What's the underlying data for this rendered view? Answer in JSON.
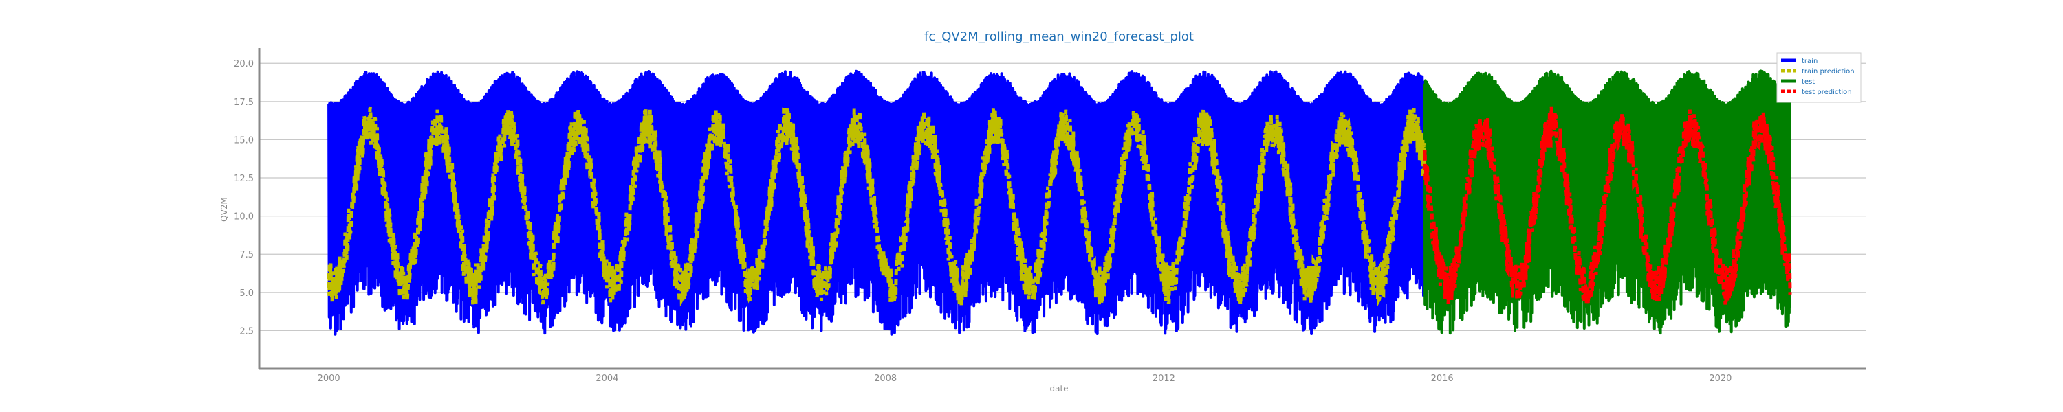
{
  "chart_data": {
    "type": "line",
    "title": "fc_QV2M_rolling_mean_win20_forecast_plot",
    "xlabel": "date",
    "ylabel": "QV2M",
    "xlim": [
      "1999-01-01",
      "2022-02-01"
    ],
    "ylim": [
      0.0,
      21.0
    ],
    "grid": "horizontal",
    "legend_position": "top-right",
    "x_ticks": [
      "2000",
      "2004",
      "2008",
      "2012",
      "2016",
      "2020"
    ],
    "y_ticks": [
      "2.5",
      "5.0",
      "7.5",
      "10.0",
      "12.5",
      "15.0",
      "17.5",
      "20.0"
    ],
    "x_range": {
      "start": "2000-01-01",
      "split": "2015-10-01",
      "end": "2021-01-01"
    },
    "envelope": {
      "peak_max_approx": 19.5,
      "peak_min_approx": 16.0,
      "trough_min_approx": 1.5,
      "trough_max_approx": 5.0,
      "prediction_range": [
        3.5,
        16.5
      ]
    },
    "series": [
      {
        "name": "train",
        "color": "#0000ff",
        "x_range": [
          "2000-01-01",
          "2015-10-01"
        ]
      },
      {
        "name": "train prediction",
        "color": "#bfbf00",
        "x_range": [
          "2000-01-01",
          "2015-10-01"
        ]
      },
      {
        "name": "test",
        "color": "#008000",
        "x_range": [
          "2015-10-01",
          "2021-01-01"
        ]
      },
      {
        "name": "test prediction",
        "color": "#ff0000",
        "x_range": [
          "2015-10-01",
          "2021-01-01"
        ]
      }
    ]
  }
}
